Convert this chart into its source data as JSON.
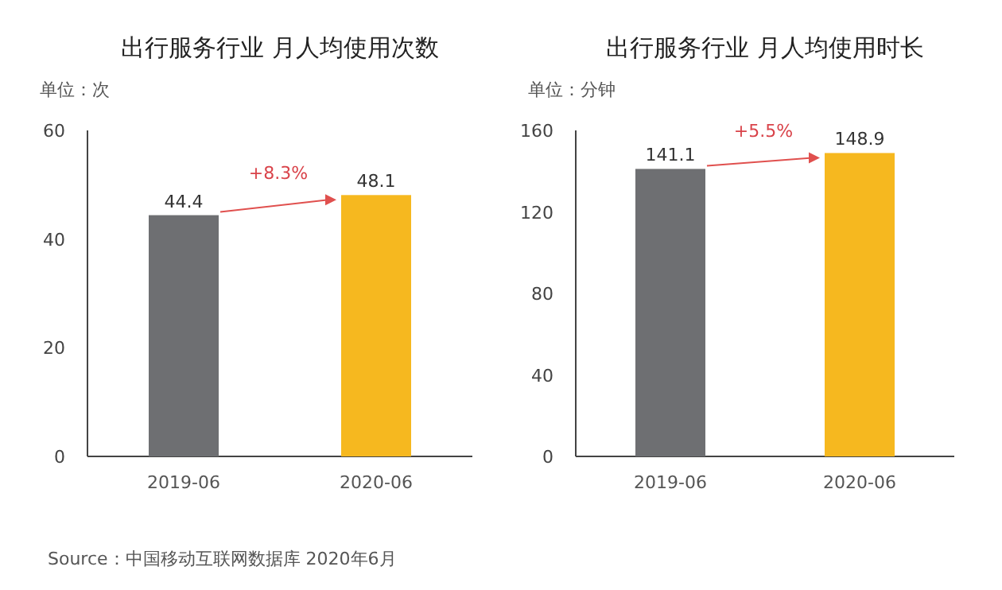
{
  "chart_data": [
    {
      "type": "bar",
      "title": "出行服务行业 月人均使用次数",
      "ylabel": "单位：次",
      "categories": [
        "2019-06",
        "2020-06"
      ],
      "values": [
        44.4,
        48.1
      ],
      "colors": [
        "#6e6f72",
        "#f6b81f"
      ],
      "ylim": [
        0,
        60
      ],
      "yticks": [
        0,
        20,
        40,
        60
      ],
      "data_labels": true,
      "annotations": [
        "+8.3%",
        "Source：中国移动互联网数据库 2020年6月"
      ]
    },
    {
      "type": "bar",
      "title": "出行服务行业 月人均使用时长",
      "ylabel": "单位：分钟",
      "categories": [
        "2019-06",
        "2020-06"
      ],
      "values": [
        141.1,
        148.9
      ],
      "colors": [
        "#6e6f72",
        "#f6b81f"
      ],
      "ylim": [
        0,
        160
      ],
      "yticks": [
        0,
        40,
        80,
        120,
        160
      ],
      "data_labels": true,
      "annotations": [
        "+5.5%"
      ]
    }
  ]
}
